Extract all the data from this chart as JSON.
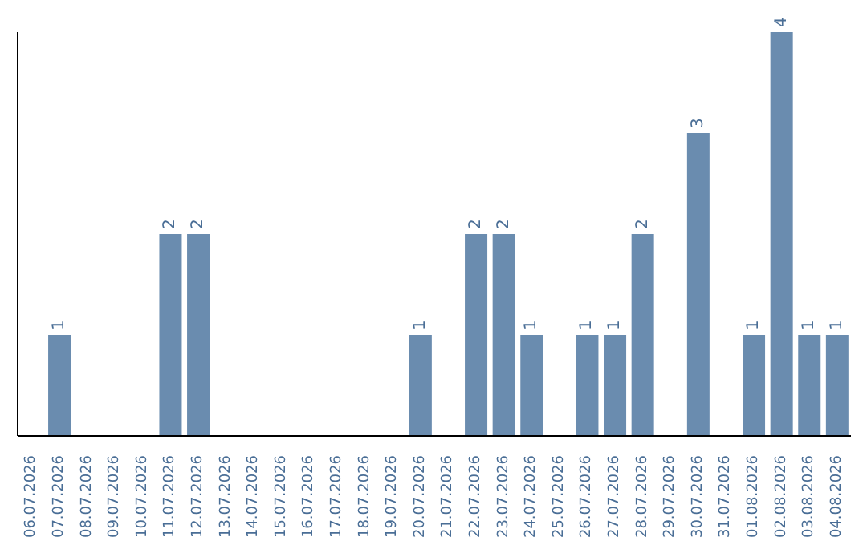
{
  "chart_data": {
    "type": "bar",
    "categories": [
      "06.07.2026",
      "07.07.2026",
      "08.07.2026",
      "09.07.2026",
      "10.07.2026",
      "11.07.2026",
      "12.07.2026",
      "13.07.2026",
      "14.07.2026",
      "15.07.2026",
      "16.07.2026",
      "17.07.2026",
      "18.07.2026",
      "19.07.2026",
      "20.07.2026",
      "21.07.2026",
      "22.07.2026",
      "23.07.2026",
      "24.07.2026",
      "25.07.2026",
      "26.07.2026",
      "27.07.2026",
      "28.07.2026",
      "29.07.2026",
      "30.07.2026",
      "31.07.2026",
      "01.08.2026",
      "02.08.2026",
      "03.08.2026",
      "04.08.2026"
    ],
    "values": [
      0,
      1,
      0,
      0,
      0,
      2,
      2,
      0,
      0,
      0,
      0,
      0,
      0,
      0,
      1,
      0,
      2,
      2,
      1,
      0,
      1,
      1,
      2,
      0,
      3,
      0,
      1,
      4,
      1,
      1
    ],
    "value_labels": [
      null,
      "1",
      null,
      null,
      null,
      "2",
      "2",
      null,
      null,
      null,
      null,
      null,
      null,
      null,
      "1",
      null,
      "2",
      "2",
      "1",
      null,
      "1",
      "1",
      "2",
      null,
      "3",
      null,
      "1",
      "4",
      "1",
      "1"
    ],
    "color": "#6a8caf",
    "grid": false,
    "legend": false
  }
}
